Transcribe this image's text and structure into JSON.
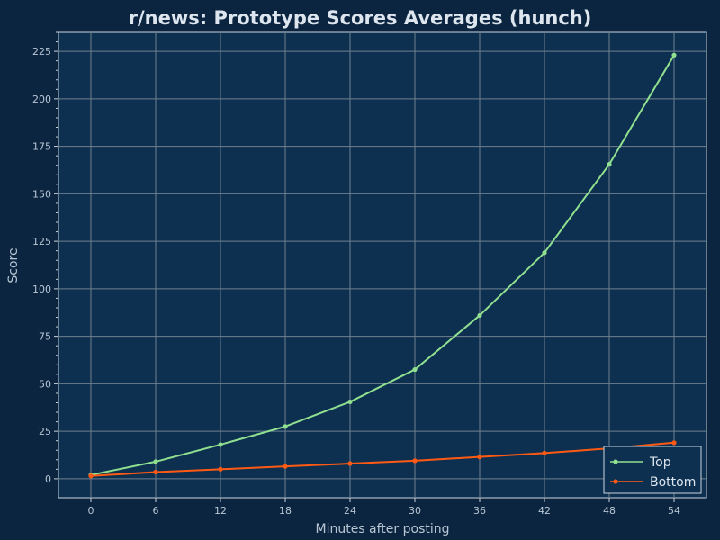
{
  "chart_data": {
    "type": "line",
    "title": "r/news: Prototype Scores Averages (hunch)",
    "xlabel": "Minutes after posting",
    "ylabel": "Score",
    "x": [
      0,
      6,
      12,
      18,
      24,
      30,
      36,
      42,
      48,
      54
    ],
    "xticks": [
      0,
      6,
      12,
      18,
      24,
      30,
      36,
      42,
      48,
      54
    ],
    "yticks": [
      0,
      25,
      50,
      75,
      100,
      125,
      150,
      175,
      200,
      225
    ],
    "xlim": [
      -3,
      57
    ],
    "ylim": [
      -10,
      235
    ],
    "grid": true,
    "legend_position": "bottom-right",
    "series": [
      {
        "name": "Top",
        "color": "#90e090",
        "values": [
          2,
          9,
          18,
          27.5,
          40.5,
          57.5,
          86,
          119,
          165.5,
          223
        ]
      },
      {
        "name": "Bottom",
        "color": "#ff5a14",
        "values": [
          1.5,
          3.5,
          5,
          6.5,
          8,
          9.5,
          11.5,
          13.5,
          16,
          19
        ]
      }
    ],
    "colors": {
      "background": "#0b2440",
      "plot_background": "#0e3050",
      "grid": "#6e7f8f",
      "text": "#dde6ee"
    }
  }
}
